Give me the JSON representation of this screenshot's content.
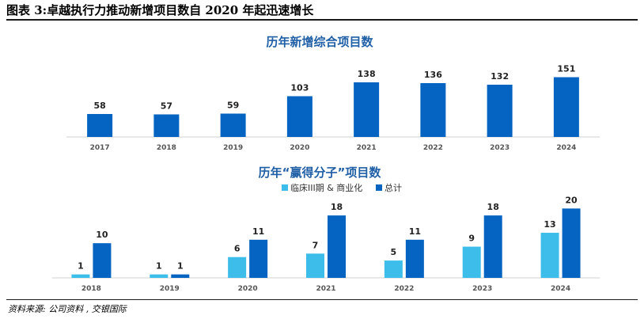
{
  "figure_title": "图表 3:卓越执行力推动新增项目数自 2020 年起迅速增长",
  "source": "资料来源: 公司资料 , 交银国际",
  "colors": {
    "dark_blue": "#0563c1",
    "light_blue": "#3dbde9",
    "title_blue": "#1f5fa6"
  },
  "chart_data": [
    {
      "type": "bar",
      "title": "历年新增综合项目数",
      "categories": [
        "2017",
        "2018",
        "2019",
        "2020",
        "2021",
        "2022",
        "2023",
        "2024"
      ],
      "values": [
        58,
        57,
        59,
        103,
        138,
        136,
        132,
        151
      ],
      "ylim": [
        0,
        160
      ],
      "grid": false
    },
    {
      "type": "bar",
      "title": "历年“赢得分子”项目数",
      "categories": [
        "2018",
        "2019",
        "2020",
        "2021",
        "2022",
        "2023",
        "2024"
      ],
      "series": [
        {
          "name": "临床III期 & 商业化",
          "values": [
            1,
            1,
            6,
            7,
            5,
            9,
            13
          ]
        },
        {
          "name": "总计",
          "values": [
            10,
            1,
            11,
            18,
            11,
            18,
            20
          ]
        }
      ],
      "legend": "top-center",
      "ylim": [
        0,
        21
      ],
      "grid": false
    }
  ]
}
